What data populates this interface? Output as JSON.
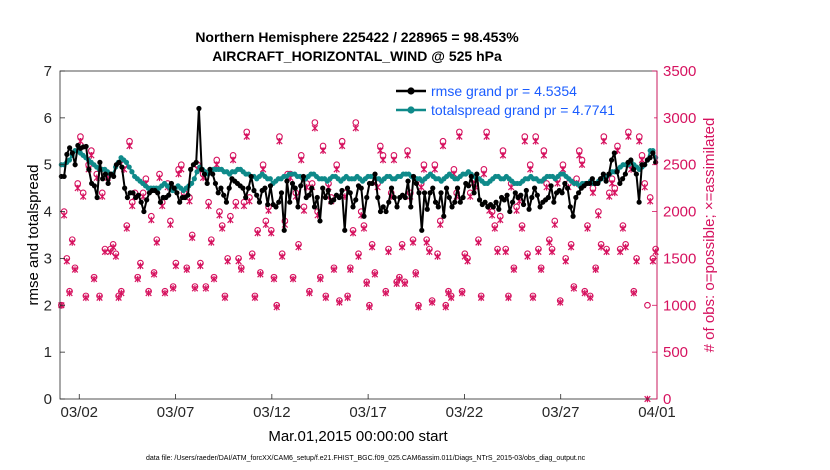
{
  "chart_data": {
    "type": "line",
    "title": [
      "Northern Hemisphere 225422 / 228965 = 98.453%",
      "AIRCRAFT_HORIZONTAL_WIND @ 525 hPa"
    ],
    "xlabel": "Mar.01,2015 00:00:00 start",
    "ylabel_left": "rmse and totalspread",
    "ylabel_right": "# of obs: o=possible; ×=assimilated",
    "xlim": [
      0,
      31
    ],
    "ylim_left": [
      0,
      7
    ],
    "ylim_right": [
      0,
      3500
    ],
    "xticks": [
      1,
      6,
      11,
      16,
      21,
      26,
      31
    ],
    "xticklabels": [
      "03/02",
      "03/07",
      "03/12",
      "03/17",
      "03/22",
      "03/27",
      "04/01"
    ],
    "yticks_left": [
      0,
      1,
      2,
      3,
      4,
      5,
      6,
      7
    ],
    "yticks_right": [
      0,
      500,
      1000,
      1500,
      2000,
      2500,
      3000,
      3500
    ],
    "colors": {
      "rmse": "#000000",
      "spread": "#0f8a8a",
      "obs": "#d6125f",
      "legend_text": "#1a5cff",
      "right_axis": "#d6125f"
    },
    "legend": [
      "rmse grand pr = 4.5354",
      "totalspread grand pr = 4.7741"
    ],
    "rmse": [
      4.75,
      4.75,
      5.22,
      5.36,
      5.25,
      5.0,
      5.41,
      5.35,
      5.38,
      5.39,
      4.9,
      4.6,
      4.55,
      4.3,
      5.05,
      4.7,
      4.8,
      4.6,
      4.8,
      4.75,
      5.0,
      5.05,
      4.95,
      4.5,
      4.3,
      4.4,
      4.4,
      4.3,
      4.35,
      4.2,
      4.0,
      4.25,
      4.4,
      4.45,
      4.45,
      4.4,
      4.2,
      4.3,
      4.3,
      4.35,
      4.6,
      4.5,
      4.4,
      4.2,
      4.3,
      4.3,
      4.35,
      4.9,
      5.0,
      5.05,
      6.2,
      4.9,
      4.8,
      4.6,
      4.9,
      4.8,
      4.6,
      4.4,
      4.5,
      4.35,
      4.2,
      4.5,
      4.7,
      4.65,
      4.6,
      4.55,
      4.5,
      4.3,
      4.5,
      4.75,
      4.45,
      4.35,
      4.2,
      4.45,
      4.5,
      4.15,
      4.55,
      4.15,
      4.1,
      4.2,
      4.4,
      3.6,
      4.65,
      4.2,
      4.6,
      4.5,
      4.1,
      4.55,
      4.75,
      4.3,
      4.35,
      4.5,
      4.1,
      4.3,
      3.8,
      4.5,
      4.3,
      4.45,
      4.2,
      4.25,
      4.35,
      4.3,
      4.45,
      3.6,
      4.5,
      4.4,
      4.1,
      4.25,
      4.55,
      4.5,
      3.9,
      4.3,
      4.6,
      4.6,
      4.8,
      4.3,
      4.0,
      4.1,
      4.0,
      4.2,
      4.5,
      4.3,
      4.1,
      4.3,
      4.35,
      4.3,
      4.65,
      4.1,
      4.75,
      4.6,
      4.4,
      3.6,
      4.4,
      4.05,
      4.4,
      4.5,
      4.2,
      4.1,
      4.4,
      3.9,
      4.5,
      4.3,
      4.1,
      4.2,
      4.5,
      4.2,
      4.3,
      4.6,
      4.55,
      4.75,
      4.4,
      4.8,
      4.25,
      4.15,
      4.2,
      4.1,
      4.15,
      4.1,
      4.2,
      4.05,
      4.3,
      4.25,
      4.35,
      4.0,
      4.2,
      4.4,
      4.3,
      4.35,
      4.15,
      4.45,
      4.05,
      4.3,
      4.5,
      4.35,
      4.1,
      4.2,
      4.25,
      4.3,
      4.55,
      4.2,
      4.4,
      4.45,
      4.4,
      4.6,
      4.5,
      4.1,
      3.9,
      4.3,
      4.4,
      4.5,
      4.55,
      4.6,
      4.6,
      4.7,
      4.6,
      4.6,
      4.7,
      4.8,
      4.65,
      4.8,
      5.1,
      5.25,
      4.85,
      4.6,
      4.7,
      4.8,
      5.05,
      5.1,
      4.9,
      4.8,
      4.2,
      5.0,
      5.0,
      5.1,
      5.15,
      5.25,
      5.05
    ],
    "spread": [
      5.0,
      5.0,
      5.05,
      5.1,
      5.2,
      5.3,
      5.3,
      5.25,
      5.2,
      5.15,
      5.1,
      5.05,
      5.0,
      4.95,
      4.9,
      4.9,
      4.9,
      4.85,
      4.8,
      4.8,
      4.95,
      5.05,
      5.15,
      5.1,
      5.05,
      4.95,
      4.85,
      4.75,
      4.7,
      4.65,
      4.6,
      4.55,
      4.5,
      4.5,
      4.5,
      4.5,
      4.5,
      4.55,
      4.6,
      4.55,
      4.5,
      4.45,
      4.5,
      4.55,
      4.5,
      4.45,
      4.5,
      4.55,
      4.6,
      4.7,
      4.85,
      4.95,
      4.9,
      4.85,
      4.8,
      4.85,
      4.9,
      4.9,
      4.9,
      4.9,
      4.85,
      4.85,
      4.8,
      4.85,
      4.85,
      4.9,
      4.9,
      4.85,
      4.8,
      4.8,
      4.75,
      4.75,
      4.7,
      4.75,
      4.8,
      4.75,
      4.7,
      4.7,
      4.6,
      4.65,
      4.7,
      4.7,
      4.75,
      4.75,
      4.8,
      4.8,
      4.8,
      4.75,
      4.75,
      4.7,
      4.7,
      4.75,
      4.8,
      4.8,
      4.75,
      4.7,
      4.7,
      4.7,
      4.65,
      4.7,
      4.75,
      4.75,
      4.7,
      4.65,
      4.7,
      4.75,
      4.7,
      4.7,
      4.7,
      4.75,
      4.7,
      4.65,
      4.7,
      4.75,
      4.75,
      4.75,
      4.7,
      4.7,
      4.65,
      4.7,
      4.75,
      4.75,
      4.7,
      4.7,
      4.75,
      4.75,
      4.8,
      4.8,
      4.8,
      4.75,
      4.7,
      4.7,
      4.7,
      4.65,
      4.7,
      4.75,
      4.8,
      4.75,
      4.7,
      4.7,
      4.65,
      4.7,
      4.75,
      4.8,
      4.75,
      4.7,
      4.7,
      4.75,
      4.8,
      4.8,
      4.85,
      4.8,
      4.75,
      4.7,
      4.7,
      4.65,
      4.6,
      4.6,
      4.65,
      4.7,
      4.75,
      4.75,
      4.7,
      4.7,
      4.75,
      4.7,
      4.65,
      4.6,
      4.6,
      4.6,
      4.65,
      4.7,
      4.7,
      4.75,
      4.7,
      4.7,
      4.65,
      4.65,
      4.7,
      4.75,
      4.75,
      4.75,
      4.7,
      4.75,
      4.8,
      4.8,
      4.75,
      4.7,
      4.65,
      4.6,
      4.6,
      4.55,
      4.6,
      4.6,
      4.6,
      4.65,
      4.6,
      4.6,
      4.65,
      4.7,
      4.75,
      4.75,
      4.8,
      4.85,
      4.85,
      4.9,
      4.95,
      5.0,
      5.0,
      5.0,
      5.05,
      5.0,
      4.95,
      4.9,
      4.95,
      5.0,
      5.1,
      5.3,
      5.3,
      5.15
    ],
    "obs_possible": [
      1000,
      2000,
      1500,
      1150,
      1700,
      1400,
      2300,
      2800,
      2200,
      1100,
      2500,
      2650,
      1300,
      2400,
      1100,
      2200,
      1600,
      2400,
      1600,
      1650,
      1550,
      1100,
      1150,
      2500,
      1850,
      2750,
      2100,
      2200,
      1300,
      1450,
      2200,
      2350,
      1150,
      1950,
      1350,
      1700,
      2400,
      2100,
      1150,
      2300,
      1900,
      1200,
      1450,
      2450,
      2500,
      2200,
      1400,
      2150,
      1750,
      1200,
      2500,
      1450,
      2400,
      1200,
      2100,
      1700,
      1300,
      2550,
      2000,
      1850,
      1100,
      1500,
      1950,
      2600,
      2100,
      1500,
      1400,
      2100,
      2850,
      2150,
      1550,
      1100,
      1800,
      1350,
      2500,
      1900,
      2050,
      1800,
      1300,
      1000,
      2800,
      1550,
      1900,
      2400,
      2400,
      1300,
      2200,
      1650,
      2600,
      2050,
      2300,
      1150,
      2300,
      2950,
      2000,
      1300,
      2700,
      1100,
      2300,
      2150,
      1400,
      2500,
      1050,
      2750,
      2200,
      1100,
      1400,
      1800,
      2950,
      1550,
      2000,
      1850,
      1250,
      1000,
      1650,
      1350,
      2300,
      2700,
      2600,
      1150,
      1600,
      2200,
      2600,
      1250,
      1300,
      1650,
      1250,
      2650,
      2200,
      1700,
      1350,
      1000,
      2300,
      2500,
      1700,
      1600,
      1050,
      2500,
      1550,
      1900,
      2750,
      1000,
      1150,
      1100,
      2450,
      2200,
      2850,
      1150,
      1550,
      1500,
      2200,
      2350,
      2300,
      1700,
      1100,
      2450,
      2850,
      2050,
      2000,
      1850,
      1600,
      1950,
      2650,
      1600,
      1100,
      2300,
      1400,
      2050,
      2150,
      1850,
      2800,
      1550,
      2500,
      1100,
      2800,
      1600,
      1400,
      2650,
      2300,
      1700,
      1600,
      1900,
      2350,
      1050,
      2500,
      1500,
      2300,
      1650,
      1200,
      2350,
      2650,
      2550,
      1150,
      1850,
      1100,
      2250,
      1400,
      2000,
      1650,
      2800,
      1600,
      2200,
      2350,
      2250,
      2700,
      1600,
      1850,
      1650,
      2850,
      2500,
      1150,
      1500,
      2800,
      2600,
      2300,
      1000,
      2150,
      1500,
      1600
    ],
    "obs_assimilated": [
      1000,
      1960,
      1470,
      1130,
      1670,
      1380,
      2250,
      2750,
      2160,
      1080,
      2450,
      2600,
      1280,
      2360,
      1080,
      2160,
      1570,
      2360,
      1570,
      1620,
      1520,
      1080,
      1130,
      2450,
      1820,
      2700,
      2060,
      2160,
      1280,
      1420,
      2160,
      2300,
      1130,
      1910,
      1330,
      1670,
      2360,
      2060,
      1130,
      2260,
      1860,
      1180,
      1420,
      2400,
      2450,
      2160,
      1380,
      2110,
      1720,
      1180,
      2450,
      1420,
      2360,
      1180,
      2060,
      1670,
      1280,
      2500,
      1960,
      1820,
      1080,
      1470,
      1910,
      2550,
      2060,
      1470,
      1380,
      2060,
      2800,
      2110,
      1520,
      1080,
      1770,
      1330,
      2450,
      1860,
      2010,
      1770,
      1280,
      980,
      2750,
      1520,
      1860,
      2360,
      2360,
      1280,
      2160,
      1620,
      2550,
      2010,
      2260,
      1130,
      2260,
      2890,
      1960,
      1280,
      2650,
      1080,
      2260,
      2110,
      1380,
      2450,
      1030,
      2700,
      2160,
      1080,
      1380,
      1770,
      2890,
      1520,
      1960,
      1820,
      1230,
      980,
      1620,
      1330,
      2260,
      2650,
      2550,
      1130,
      1570,
      2160,
      2550,
      1230,
      1280,
      1620,
      1230,
      2600,
      2160,
      1670,
      1330,
      980,
      2260,
      2450,
      1670,
      1570,
      1030,
      2450,
      1520,
      1860,
      2700,
      980,
      1130,
      1080,
      2400,
      2160,
      2800,
      1130,
      1520,
      1470,
      2160,
      2300,
      2260,
      1670,
      1080,
      2400,
      2800,
      2010,
      1960,
      1820,
      1570,
      1910,
      2600,
      1570,
      1080,
      2260,
      1380,
      2010,
      2110,
      1820,
      2750,
      1520,
      2450,
      1080,
      2750,
      1570,
      1380,
      2600,
      2260,
      1670,
      1570,
      1860,
      2300,
      1030,
      2450,
      1470,
      2260,
      1620,
      1180,
      2300,
      2600,
      2500,
      1130,
      1820,
      1080,
      2200,
      1380,
      1960,
      1620,
      2750,
      1570,
      2160,
      2300,
      2200,
      2650,
      1570,
      1820,
      1620,
      2800,
      2450,
      1130,
      1470,
      2750,
      2550,
      2260,
      0,
      2110,
      1470,
      1570
    ]
  },
  "footer": "data file: /Users/raeder/DAI/ATM_forcXX/CAM6_setup/f.e21.FHIST_BGC.f09_025.CAM6assim.011/Diags_NTrS_2015-03/obs_diag_output.nc"
}
